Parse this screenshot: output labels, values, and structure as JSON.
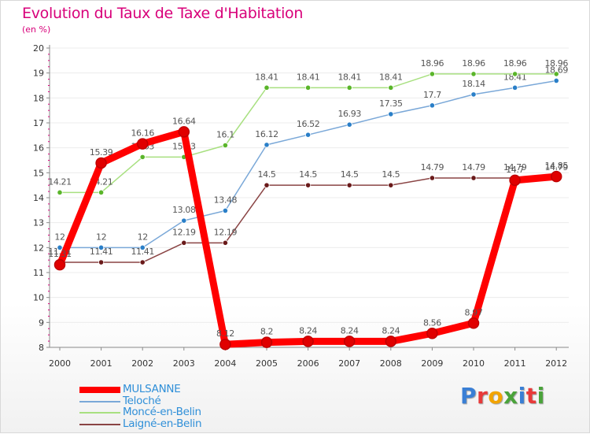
{
  "title": "Evolution du Taux de Taxe d'Habitation",
  "unit_label": "(en %)",
  "brand": {
    "text": "Proxiti",
    "letters": [
      {
        "char": "P",
        "color": "#3a7fd5"
      },
      {
        "char": "r",
        "color": "#e83a3a"
      },
      {
        "char": "o",
        "color": "#f2a400"
      },
      {
        "char": "x",
        "color": "#4aa33a"
      },
      {
        "char": "i",
        "color": "#3a7fd5"
      },
      {
        "char": "t",
        "color": "#e83a3a"
      },
      {
        "char": "i",
        "color": "#4aa33a"
      }
    ]
  },
  "colors": {
    "axis": "#8a8a8a",
    "grid": "#ececec",
    "minor_tick": "#d8007a",
    "tick_label": "#333333",
    "data_label": "#555555",
    "legend_text": "#2f8fd8"
  },
  "chart_data": {
    "type": "line",
    "title": "Evolution du Taux de Taxe d'Habitation",
    "ylabel": "(en %)",
    "xlabel": "",
    "x": [
      "2000",
      "2001",
      "2002",
      "2003",
      "2004",
      "2005",
      "2006",
      "2007",
      "2008",
      "2009",
      "2010",
      "2011",
      "2012"
    ],
    "ylim": [
      8,
      20
    ],
    "yticks": [
      "8",
      "9",
      "10",
      "11",
      "12",
      "13",
      "14",
      "15",
      "16",
      "17",
      "18",
      "19",
      "20"
    ],
    "grid": true,
    "legend_position": "bottom-left",
    "series": [
      {
        "name": "MULSANNE",
        "color": "#ff0000",
        "dot_color": "#e00000",
        "width": 9,
        "values": [
          11.31,
          15.39,
          16.16,
          16.64,
          8.12,
          8.2,
          8.24,
          8.24,
          8.24,
          8.56,
          8.97,
          14.7,
          14.85
        ],
        "labels": [
          "11.31",
          "15.39",
          "16.16",
          "16.64",
          "8.12",
          "8.2",
          "8.24",
          "8.24",
          "8.24",
          "8.56",
          "8.97",
          "14.7",
          "14.85"
        ]
      },
      {
        "name": "Teloché",
        "color": "#7aa8d8",
        "dot_color": "#2a7fc8",
        "width": 1.5,
        "values": [
          12,
          12,
          12,
          13.08,
          13.48,
          16.12,
          16.52,
          16.93,
          17.35,
          17.7,
          18.14,
          18.41,
          18.69
        ],
        "labels": [
          "12",
          "12",
          "12",
          "13.08",
          "13.48",
          "16.12",
          "16.52",
          "16.93",
          "17.35",
          "17.7",
          "18.14",
          "18.41",
          "18.69"
        ]
      },
      {
        "name": "Moncé-en-Belin",
        "color": "#a8e080",
        "dot_color": "#5ab52a",
        "width": 1.5,
        "values": [
          14.21,
          14.21,
          15.63,
          15.63,
          16.1,
          18.41,
          18.41,
          18.41,
          18.41,
          18.96,
          18.96,
          18.96,
          18.96
        ],
        "labels": [
          "14.21",
          "14.21",
          "15.63",
          "15.63",
          "16.1",
          "18.41",
          "18.41",
          "18.41",
          "18.41",
          "18.96",
          "18.96",
          "18.96",
          "18.96"
        ]
      },
      {
        "name": "Laigné-en-Belin",
        "color": "#8a4444",
        "dot_color": "#6a1a1a",
        "width": 1.5,
        "values": [
          11.41,
          11.41,
          11.41,
          12.19,
          12.19,
          14.5,
          14.5,
          14.5,
          14.5,
          14.79,
          14.79,
          14.79,
          14.79
        ],
        "labels": [
          "11.41",
          "11.41",
          "11.41",
          "12.19",
          "12.19",
          "14.5",
          "14.5",
          "14.5",
          "14.5",
          "14.79",
          "14.79",
          "14.79",
          "14.79"
        ]
      }
    ]
  }
}
